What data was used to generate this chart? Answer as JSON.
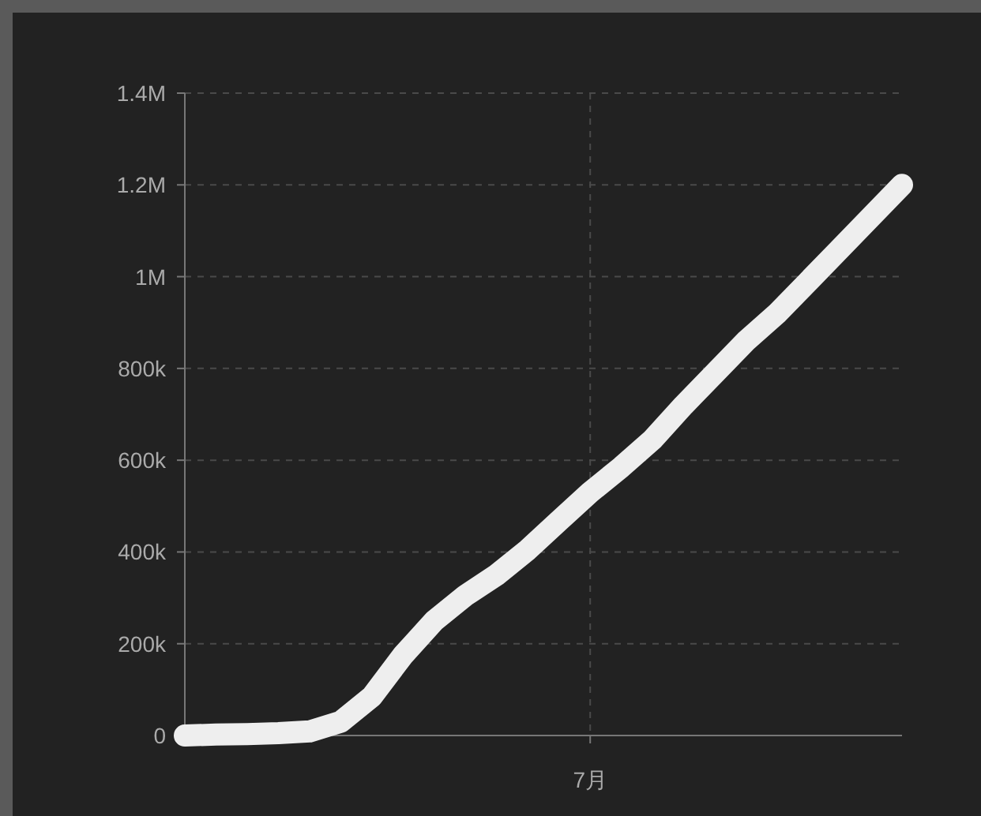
{
  "chart_data": {
    "type": "line",
    "categories": [
      null,
      null,
      null,
      null,
      null,
      null,
      null,
      null,
      null,
      null,
      null,
      null,
      null,
      "7月",
      null,
      null,
      null,
      null,
      null,
      null,
      null,
      null,
      null,
      null
    ],
    "series": [
      {
        "color": "#eeeeee",
        "values": [
          0,
          2000,
          3000,
          5000,
          9000,
          30000,
          85000,
          175000,
          250000,
          305000,
          350000,
          405000,
          468000,
          530000,
          585000,
          645000,
          720000,
          790000,
          860000,
          920000,
          990000,
          1060000,
          1130000,
          1200000
        ]
      }
    ],
    "ylim": [
      0,
      1400000
    ],
    "yticks": [
      {
        "value": 0,
        "label": "0"
      },
      {
        "value": 200000,
        "label": "200k"
      },
      {
        "value": 400000,
        "label": "400k"
      },
      {
        "value": 600000,
        "label": "600k"
      },
      {
        "value": 800000,
        "label": "800k"
      },
      {
        "value": 1000000,
        "label": "1M"
      },
      {
        "value": 1200000,
        "label": "1.2M"
      },
      {
        "value": 1400000,
        "label": "1.4M"
      }
    ],
    "grid": true
  }
}
